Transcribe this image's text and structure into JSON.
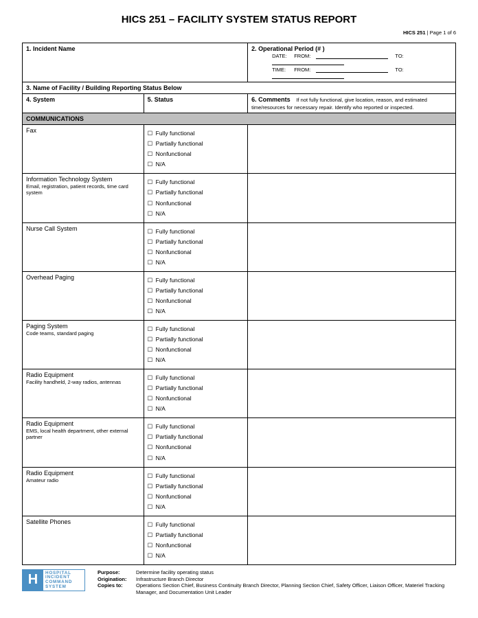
{
  "title": "HICS 251 – FACILITY SYSTEM STATUS REPORT",
  "pageInfo": {
    "form": "HICS 251",
    "sep": " | ",
    "page": "Page 1 of 6"
  },
  "headers": {
    "incident": "1.  Incident Name",
    "period": "2. Operational Period    (#                 )",
    "dateLbl": "DATE:",
    "timeLbl": "TIME:",
    "fromLbl": "FROM:",
    "toLbl": "TO:",
    "facility": "3. Name of Facility / Building Reporting Status Below",
    "system": "4. System",
    "status": "5. Status",
    "commentsTitle": "6. Comments",
    "commentsSub": "If not fully functional, give location, reason, and estimated time/resources for necessary repair. Identify who reported or inspected."
  },
  "section": "COMMUNICATIONS",
  "statusOptions": [
    "Fully functional",
    "Partially functional",
    "Nonfunctional",
    "N/A"
  ],
  "rows": [
    {
      "name": "Fax",
      "sub": ""
    },
    {
      "name": "Information Technology System",
      "sub": "Email, registration, patient records, time card system"
    },
    {
      "name": "Nurse Call System",
      "sub": ""
    },
    {
      "name": "Overhead Paging",
      "sub": ""
    },
    {
      "name": "Paging System",
      "sub": "Code teams, standard paging"
    },
    {
      "name": "Radio Equipment",
      "sub": "Facility handheld, 2-way radios, antennas"
    },
    {
      "name": "Radio Equipment",
      "sub": "EMS, local health department, other external partner"
    },
    {
      "name": "Radio Equipment",
      "sub": "Amateur radio"
    },
    {
      "name": "Satellite Phones",
      "sub": ""
    }
  ],
  "logo": {
    "h": "H",
    "l1": "HOSPITAL",
    "l2": "INCIDENT",
    "l3": "COMMAND",
    "l4": "SYSTEM"
  },
  "footer": {
    "purposeLbl": "Purpose:",
    "purpose": "Determine facility operating status",
    "originLbl": "Origination:",
    "origin": "Infrastructure Branch Director",
    "copiesLbl": "Copies to:",
    "copies": "Operations Section Chief, Business Continuity Branch Director, Planning Section Chief, Safety Officer, Liaison Officer, Materiel Tracking Manager, and Documentation Unit Leader"
  }
}
